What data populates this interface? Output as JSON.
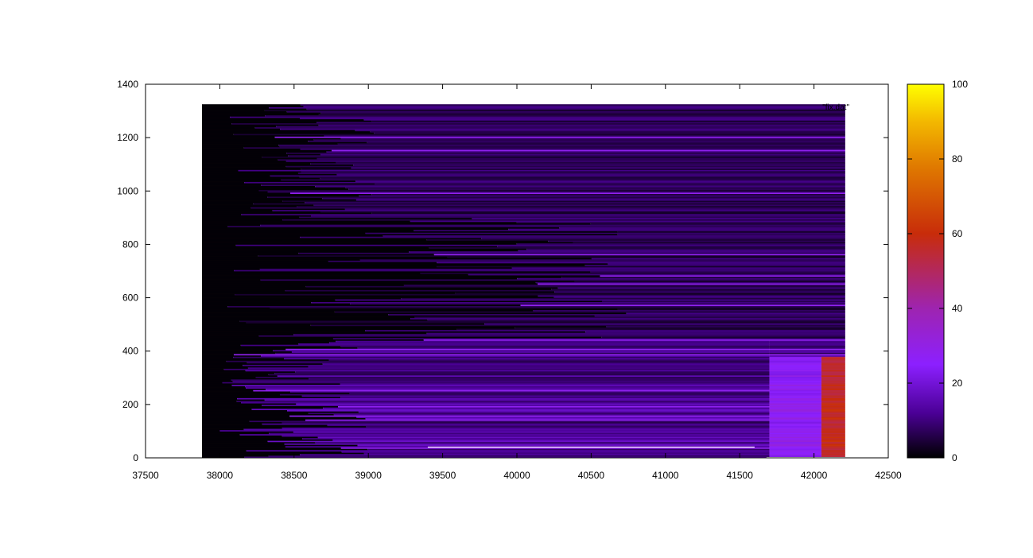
{
  "chart_data": {
    "type": "heatmap",
    "title": "",
    "xlabel": "",
    "ylabel": "",
    "legend_label": "\"fix.dat\"",
    "legend_position": "top-right",
    "xlim": [
      37500,
      42500
    ],
    "ylim": [
      0,
      1400
    ],
    "x_ticks": [
      37500,
      38000,
      38500,
      39000,
      39500,
      40000,
      40500,
      41000,
      41500,
      42000,
      42500
    ],
    "y_ticks": [
      0,
      200,
      400,
      600,
      800,
      1000,
      1200,
      1400
    ],
    "data_extent": {
      "x": [
        37880,
        42210
      ],
      "y": [
        0,
        1325
      ]
    },
    "colorbar": {
      "range": [
        0,
        100
      ],
      "ticks": [
        0,
        20,
        40,
        60,
        80,
        100
      ],
      "palette": "black-purple-red-orange-yellow",
      "colors": [
        "#000000",
        "#4b0096",
        "#8c20ff",
        "#9e24b0",
        "#c82c0a",
        "#e07a00",
        "#f3b800",
        "#ffff00"
      ]
    },
    "regions": [
      {
        "rows": [
          0,
          25
        ],
        "x_start": 37880,
        "x_end": 39000,
        "value": 1
      },
      {
        "rows": [
          0,
          25
        ],
        "x_start": 39000,
        "x_end": 41650,
        "value": 8
      },
      {
        "rows": [
          0,
          380
        ],
        "x_start": 41700,
        "x_end": 42050,
        "value": 28
      },
      {
        "rows": [
          0,
          380
        ],
        "x_start": 42050,
        "x_end": 42210,
        "value": 57
      },
      {
        "rows": [
          25,
          440
        ],
        "x_start": 38000,
        "x_end": 41700,
        "value": 9
      },
      {
        "rows": [
          440,
          1325
        ],
        "x_start": 38000,
        "x_end": 42210,
        "value": 7
      }
    ],
    "notes_highlight_rows": [
      35,
      140,
      155,
      190,
      250,
      385,
      405,
      440,
      570,
      650,
      680,
      760,
      990,
      1150,
      1200
    ]
  }
}
